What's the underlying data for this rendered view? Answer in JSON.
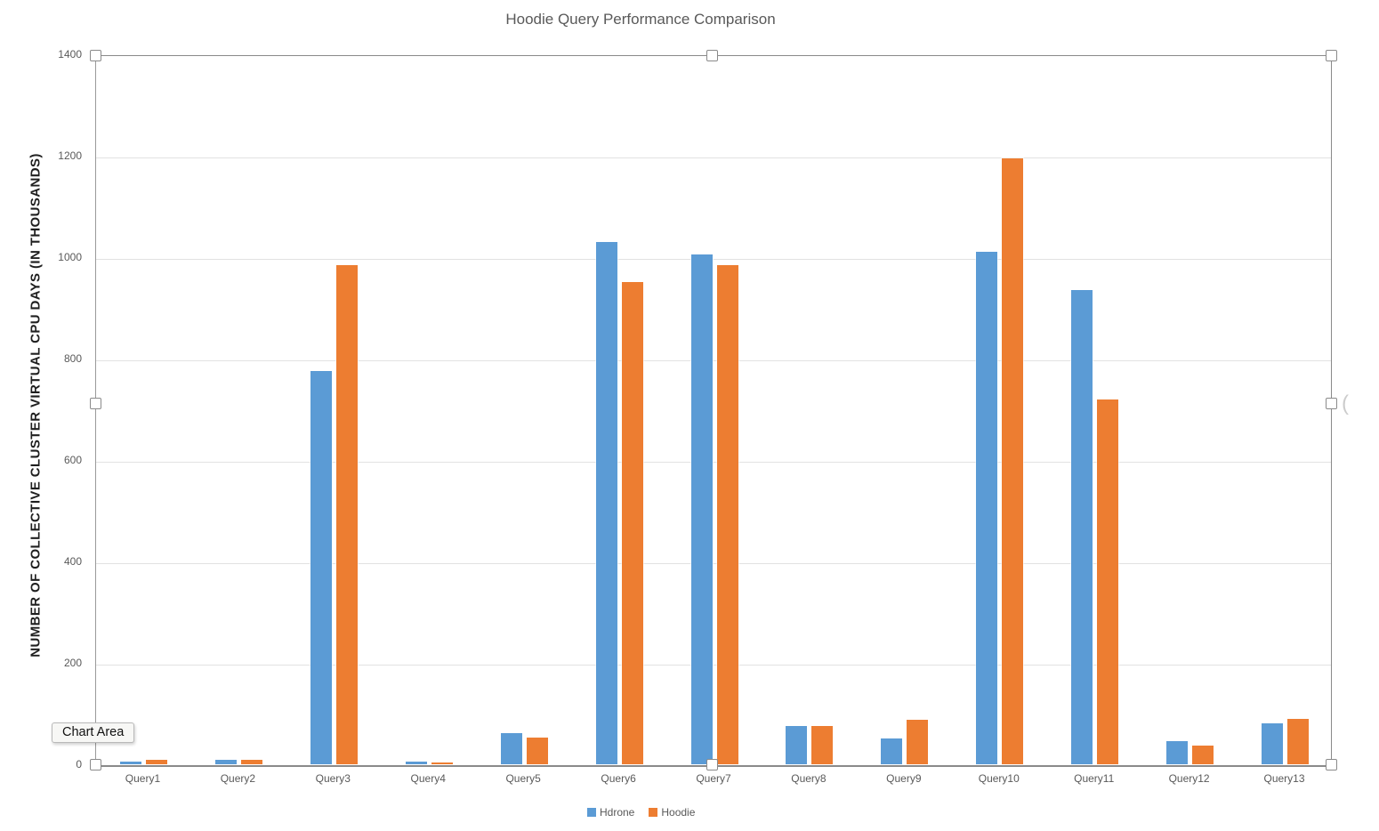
{
  "chart_data": {
    "type": "bar",
    "title": "Hoodie Query Performance Comparison",
    "ylabel": "NUMBER OF COLLECTIVE CLUSTER VIRTUAL CPU DAYS (IN THOUSANDS)",
    "xlabel": "",
    "categories": [
      "Query1",
      "Query2",
      "Query3",
      "Query4",
      "Query5",
      "Query6",
      "Query7",
      "Query8",
      "Query9",
      "Query10",
      "Query11",
      "Query12",
      "Query13"
    ],
    "series": [
      {
        "name": "Hdrone",
        "color": "#5B9BD5",
        "values": [
          5,
          9,
          775,
          5,
          62,
          1030,
          1005,
          75,
          50,
          1010,
          935,
          45,
          80
        ]
      },
      {
        "name": "Hoodie",
        "color": "#ED7D31",
        "values": [
          9,
          8,
          985,
          4,
          52,
          950,
          985,
          75,
          88,
          1195,
          720,
          36,
          90
        ]
      }
    ],
    "ylim": [
      0,
      1400
    ],
    "yticks": [
      0,
      200,
      400,
      600,
      800,
      1000,
      1200,
      1400
    ],
    "grid": true,
    "legend_position": "bottom"
  },
  "overlay": {
    "tooltip_label": "Chart Area",
    "stray_glyph": "("
  },
  "colors": {
    "bar_blue": "#5B9BD5",
    "bar_orange": "#ED7D31",
    "title_text": "#595959",
    "axis_text": "#595959",
    "gridline": "#E2E2E2",
    "axis_line": "#8A8A8A",
    "tooltip_bg": "#F7F7F5",
    "tooltip_border": "#B9B9B9"
  }
}
